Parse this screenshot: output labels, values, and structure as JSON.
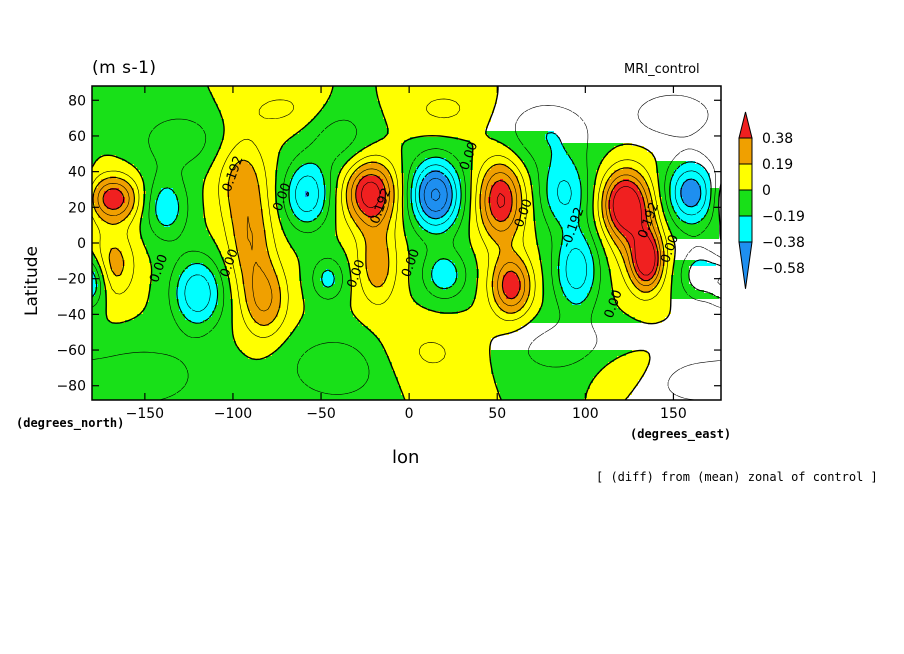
{
  "header": {
    "units": "(m s-1)",
    "run_name": "MRI_control",
    "note": "[ (diff) from (mean) zonal of control ]"
  },
  "chart_data": {
    "type": "heatmap",
    "xlabel": "lon",
    "ylabel": "Latitude",
    "x_units": "(degrees_east)",
    "y_units": "(degrees_north)",
    "xlim": [
      -180,
      177
    ],
    "ylim": [
      -88,
      88
    ],
    "x_ticks": [
      -150,
      -100,
      -50,
      0,
      50,
      100,
      150
    ],
    "x_tick_labels": [
      "−150",
      "−100",
      "−50",
      "0",
      "50",
      "100",
      "150"
    ],
    "y_ticks": [
      80,
      60,
      40,
      20,
      0,
      -20,
      -40,
      -60,
      -80
    ],
    "y_tick_labels": [
      "80",
      "60",
      "40",
      "20",
      "0",
      "−20",
      "−40",
      "−60",
      "−80"
    ],
    "colorbar": {
      "levels": [
        -0.58,
        -0.38,
        -0.19,
        0,
        0.19,
        0.38
      ],
      "labels": [
        "−0.58",
        "−0.38",
        "−0.19",
        "0",
        "0.19",
        "0.38"
      ],
      "colors": [
        "#1e8ff0",
        "#00ffff",
        "#18e018",
        "#ffff00",
        "#f0a000",
        "#f02020"
      ],
      "extend": "both"
    },
    "contour_labels": [
      {
        "text": "0.192",
        "lon": -98,
        "lat": 38
      },
      {
        "text": "0.00",
        "lon": -70,
        "lat": 25
      },
      {
        "text": "0.00",
        "lon": -100,
        "lat": -12
      },
      {
        "text": "0.00",
        "lon": -140,
        "lat": -15
      },
      {
        "text": "0.00",
        "lon": -28,
        "lat": -18
      },
      {
        "text": "0.192",
        "lon": -14,
        "lat": 20
      },
      {
        "text": "0.00",
        "lon": 3,
        "lat": -12
      },
      {
        "text": "0.00",
        "lon": 36,
        "lat": 48
      },
      {
        "text": "0.00",
        "lon": 67,
        "lat": 16
      },
      {
        "text": "-0.192",
        "lon": 95,
        "lat": 8
      },
      {
        "text": "0.00",
        "lon": 118,
        "lat": -35
      },
      {
        "text": "0.192",
        "lon": 138,
        "lat": 12
      },
      {
        "text": "0.00",
        "lon": 150,
        "lat": -4
      }
    ],
    "anomalies": [
      {
        "lon": -168,
        "lat": 25,
        "amp": 0.46,
        "sx": 10,
        "sy": 9
      },
      {
        "lon": -168,
        "lat": -12,
        "amp": 0.24,
        "sx": 9,
        "sy": 14
      },
      {
        "lon": -180,
        "lat": -22,
        "amp": -0.3,
        "sx": 6,
        "sy": 10
      },
      {
        "lon": -138,
        "lat": 20,
        "amp": -0.26,
        "sx": 9,
        "sy": 13
      },
      {
        "lon": -120,
        "lat": -28,
        "amp": -0.38,
        "sx": 10,
        "sy": 14
      },
      {
        "lon": -95,
        "lat": 35,
        "amp": 0.24,
        "sx": 10,
        "sy": 18
      },
      {
        "lon": -90,
        "lat": 0,
        "amp": 0.24,
        "sx": 9,
        "sy": 18
      },
      {
        "lon": -82,
        "lat": -32,
        "amp": 0.3,
        "sx": 9,
        "sy": 15
      },
      {
        "lon": -58,
        "lat": 27,
        "amp": -0.38,
        "sx": 9,
        "sy": 13
      },
      {
        "lon": -46,
        "lat": -20,
        "amp": -0.22,
        "sx": 7,
        "sy": 9
      },
      {
        "lon": -22,
        "lat": 28,
        "amp": 0.55,
        "sx": 10,
        "sy": 13
      },
      {
        "lon": -18,
        "lat": -12,
        "amp": 0.26,
        "sx": 8,
        "sy": 16
      },
      {
        "lon": 15,
        "lat": 27,
        "amp": -0.6,
        "sx": 10,
        "sy": 14
      },
      {
        "lon": 20,
        "lat": -18,
        "amp": -0.26,
        "sx": 9,
        "sy": 10
      },
      {
        "lon": 52,
        "lat": 24,
        "amp": 0.5,
        "sx": 9,
        "sy": 16
      },
      {
        "lon": 58,
        "lat": -24,
        "amp": 0.46,
        "sx": 8,
        "sy": 12
      },
      {
        "lon": 88,
        "lat": 28,
        "amp": -0.3,
        "sx": 10,
        "sy": 14
      },
      {
        "lon": 95,
        "lat": -15,
        "amp": -0.36,
        "sx": 9,
        "sy": 16
      },
      {
        "lon": 122,
        "lat": 22,
        "amp": 0.55,
        "sx": 9,
        "sy": 13
      },
      {
        "lon": 135,
        "lat": -10,
        "amp": 0.5,
        "sx": 6,
        "sy": 11
      },
      {
        "lon": 130,
        "lat": 5,
        "amp": 0.22,
        "sx": 10,
        "sy": 20
      },
      {
        "lon": 160,
        "lat": 28,
        "amp": -0.46,
        "sx": 10,
        "sy": 13
      },
      {
        "lon": 165,
        "lat": -18,
        "amp": -0.26,
        "sx": 8,
        "sy": 10
      },
      {
        "lon": -130,
        "lat": 58,
        "amp": -0.16,
        "sx": 18,
        "sy": 12
      },
      {
        "lon": -40,
        "lat": 60,
        "amp": -0.16,
        "sx": 14,
        "sy": 14
      },
      {
        "lon": 78,
        "lat": 62,
        "amp": -0.18,
        "sx": 20,
        "sy": 14
      },
      {
        "lon": 150,
        "lat": 72,
        "amp": -0.18,
        "sx": 18,
        "sy": 10
      },
      {
        "lon": -150,
        "lat": -75,
        "amp": -0.16,
        "sx": 25,
        "sy": 14
      },
      {
        "lon": -40,
        "lat": -70,
        "amp": -0.18,
        "sx": 22,
        "sy": 14
      },
      {
        "lon": 90,
        "lat": -60,
        "amp": -0.16,
        "sx": 25,
        "sy": 12
      },
      {
        "lon": 160,
        "lat": -78,
        "amp": -0.14,
        "sx": 20,
        "sy": 10
      },
      {
        "lon": -70,
        "lat": 75,
        "amp": 0.12,
        "sx": 20,
        "sy": 10
      },
      {
        "lon": 20,
        "lat": 75,
        "amp": 0.12,
        "sx": 18,
        "sy": 10
      },
      {
        "lon": 10,
        "lat": -62,
        "amp": 0.12,
        "sx": 22,
        "sy": 14
      },
      {
        "lon": 120,
        "lat": -70,
        "amp": 0.1,
        "sx": 18,
        "sy": 10
      }
    ]
  }
}
